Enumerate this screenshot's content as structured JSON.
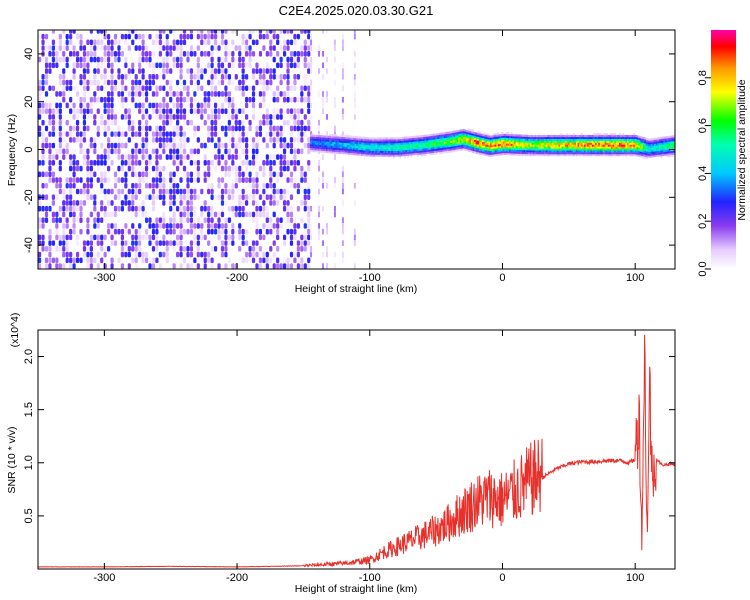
{
  "title": "C2E4.2025.020.03.30.G21",
  "chart_data": [
    {
      "type": "heatmap",
      "xlabel": "Height of straight line (km)",
      "ylabel": "Frequency (Hz)",
      "xlim": [
        -350,
        130
      ],
      "ylim": [
        -50,
        50
      ],
      "xticks": [
        -300,
        -200,
        -100,
        0,
        100
      ],
      "xtick_labels": [
        "-300",
        "-200",
        "-100",
        "0",
        "100"
      ],
      "yticks": [
        -40,
        -20,
        0,
        20,
        40
      ],
      "ytick_labels": [
        "-40",
        "-20",
        "0",
        "20",
        "40"
      ],
      "colorbar": {
        "label": "Normalized spectral amplitude",
        "range": [
          0,
          1
        ],
        "ticks": [
          0.0,
          0.2,
          0.4,
          0.6,
          0.8
        ],
        "tick_labels": [
          "0.0",
          "0.2",
          "0.4",
          "0.6",
          "0.8"
        ]
      },
      "regions": [
        {
          "x_range": [
            -350,
            -145
          ],
          "frequency_range": [
            -50,
            50
          ],
          "amplitude_range": [
            0.02,
            0.3
          ]
        },
        {
          "x_range": [
            -145,
            -110
          ],
          "frequency_range": [
            -50,
            50
          ],
          "amplitude_range": [
            0.02,
            0.15
          ]
        },
        {
          "x_range": [
            -145,
            130
          ],
          "frequency_range": [
            -5,
            8
          ],
          "amplitude_range": [
            0.3,
            1.0
          ]
        }
      ],
      "ridge": {
        "x": [
          -145,
          -120,
          -100,
          -80,
          -60,
          -40,
          -30,
          -20,
          -10,
          0,
          20,
          40,
          60,
          80,
          100,
          110,
          130
        ],
        "frequency": [
          2.5,
          1.5,
          0.5,
          0.5,
          1.5,
          3,
          4,
          2.5,
          1.2,
          2,
          1.5,
          1.5,
          1.5,
          1.5,
          1.5,
          0,
          1.5
        ],
        "amplitude": [
          0.35,
          0.45,
          0.5,
          0.55,
          0.6,
          0.7,
          0.8,
          0.95,
          0.9,
          0.95,
          0.75,
          0.85,
          0.9,
          0.95,
          0.9,
          0.5,
          0.65
        ]
      }
    },
    {
      "type": "line",
      "xlabel": "Height of straight line (km)",
      "ylabel": "SNR (10 * v/v)",
      "y_multiplier": "(x10^4)",
      "xlim": [
        -350,
        130
      ],
      "ylim": [
        0,
        22500
      ],
      "xticks": [
        -300,
        -200,
        -100,
        0,
        100
      ],
      "xtick_labels": [
        "-300",
        "-200",
        "-100",
        "0",
        "100"
      ],
      "yticks": [
        5000,
        10000,
        15000,
        20000
      ],
      "ytick_labels": [
        "0.5",
        "1.0",
        "1.5",
        "2.0"
      ],
      "series": [
        {
          "color": "#e8302a",
          "x": [
            -350,
            -300,
            -250,
            -200,
            -150,
            -120,
            -100,
            -90,
            -80,
            -70,
            -60,
            -50,
            -40,
            -30,
            -20,
            -10,
            0,
            10,
            20,
            30,
            40,
            50,
            60,
            70,
            80,
            90,
            95,
            100,
            103,
            105,
            107,
            109,
            111,
            113,
            115,
            120,
            130
          ],
          "y": [
            200,
            200,
            250,
            200,
            300,
            500,
            800,
            1500,
            2000,
            2500,
            3000,
            3500,
            4200,
            5200,
            6000,
            6500,
            6200,
            7000,
            7900,
            8600,
            9400,
            9900,
            10100,
            10100,
            10200,
            10200,
            10000,
            10300,
            15000,
            2500,
            21000,
            3000,
            17000,
            8000,
            10500,
            9800,
            9900
          ]
        }
      ]
    }
  ]
}
